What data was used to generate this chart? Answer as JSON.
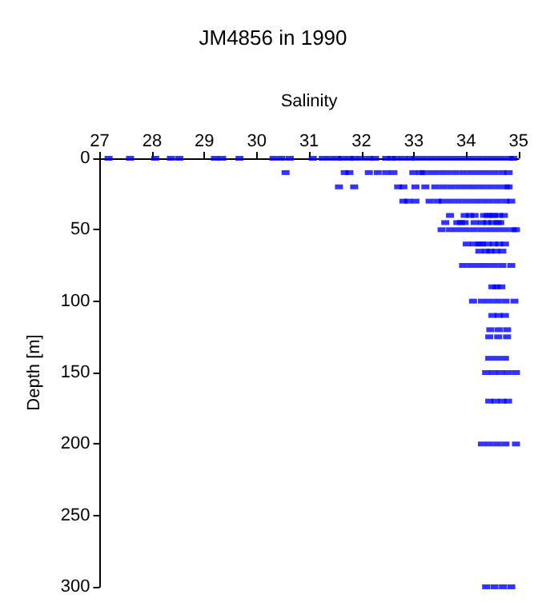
{
  "chart_data": {
    "type": "scatter",
    "title": "JM4856 in 1990",
    "xlabel": "Salinity",
    "ylabel": "Depth [m]",
    "xlim": [
      27,
      35
    ],
    "xticks": [
      27,
      28,
      29,
      30,
      31,
      32,
      33,
      34,
      35
    ],
    "ylim": [
      300,
      0
    ],
    "yticks": [
      0,
      50,
      100,
      150,
      200,
      250,
      300
    ],
    "grid": false,
    "marker": "square",
    "series": [
      {
        "color": "#0000ff",
        "x": [
          27.17,
          27.58,
          28.06,
          28.36,
          28.52,
          29.2,
          29.34,
          29.67,
          30.32,
          30.47,
          30.63,
          31.07,
          31.26,
          31.4,
          31.54,
          31.63,
          31.77,
          31.86,
          32.0,
          32.15,
          32.26,
          32.47,
          32.57,
          32.66,
          32.8,
          32.94,
          33.03,
          33.18,
          33.33,
          33.48,
          33.63,
          33.78,
          33.93,
          34.08,
          34.23,
          34.38,
          34.53,
          34.68,
          34.83,
          34.9,
          30.55,
          31.68,
          31.77,
          32.14,
          32.31,
          32.47,
          32.61,
          32.99,
          33.13,
          33.19,
          33.34,
          33.49,
          33.64,
          33.79,
          33.94,
          34.09,
          34.24,
          34.39,
          34.54,
          34.69,
          34.81,
          31.57,
          31.86,
          32.7,
          32.8,
          33.03,
          33.22,
          33.41,
          33.56,
          33.71,
          33.86,
          34.01,
          34.16,
          34.31,
          34.46,
          34.61,
          34.76,
          34.81,
          32.8,
          32.89,
          33.03,
          33.3,
          33.45,
          33.55,
          33.7,
          33.85,
          34.0,
          34.15,
          34.3,
          34.45,
          34.6,
          34.75,
          34.86,
          33.69,
          33.97,
          34.07,
          34.16,
          34.34,
          34.41,
          34.48,
          34.53,
          34.63,
          34.72,
          33.6,
          33.83,
          33.9,
          33.97,
          34.16,
          34.3,
          34.4,
          34.5,
          34.6,
          34.65,
          33.53,
          33.69,
          33.84,
          33.99,
          34.14,
          34.29,
          34.44,
          34.59,
          34.74,
          34.89,
          34.95,
          34.01,
          34.15,
          34.25,
          34.3,
          34.41,
          34.53,
          34.63,
          34.74,
          34.25,
          34.38,
          34.46,
          34.57,
          34.69,
          33.94,
          34.09,
          34.24,
          34.39,
          34.54,
          34.69,
          34.86,
          34.5,
          34.58,
          34.67,
          34.13,
          34.3,
          34.45,
          34.6,
          34.75,
          34.92,
          34.5,
          34.62,
          34.74,
          34.46,
          34.62,
          34.78,
          34.44,
          34.61,
          34.78,
          34.44,
          34.59,
          34.74,
          34.38,
          34.52,
          34.66,
          34.8,
          34.95,
          34.44,
          34.56,
          34.69,
          34.8,
          34.3,
          34.45,
          34.6,
          34.75,
          34.95,
          34.38,
          34.54,
          34.7,
          34.86
        ],
        "values": [
          0,
          0,
          0,
          0,
          0,
          0,
          0,
          0,
          0,
          0,
          0,
          0,
          0,
          0,
          0,
          0,
          0,
          0,
          0,
          0,
          0,
          0,
          0,
          0,
          0,
          0,
          0,
          0,
          0,
          0,
          0,
          0,
          0,
          0,
          0,
          0,
          0,
          0,
          0,
          0,
          10,
          10,
          10,
          10,
          10,
          10,
          10,
          10,
          10,
          10,
          10,
          10,
          10,
          10,
          10,
          10,
          10,
          10,
          10,
          10,
          10,
          20,
          20,
          20,
          20,
          20,
          20,
          20,
          20,
          20,
          20,
          20,
          20,
          20,
          20,
          20,
          20,
          20,
          30,
          30,
          30,
          30,
          30,
          30,
          30,
          30,
          30,
          30,
          30,
          30,
          30,
          30,
          30,
          40,
          40,
          40,
          40,
          40,
          40,
          40,
          40,
          40,
          40,
          45,
          45,
          45,
          45,
          45,
          45,
          45,
          45,
          45,
          45,
          50,
          50,
          50,
          50,
          50,
          50,
          50,
          50,
          50,
          50,
          50,
          60,
          60,
          60,
          60,
          60,
          60,
          60,
          60,
          65,
          65,
          65,
          65,
          65,
          75,
          75,
          75,
          75,
          75,
          75,
          75,
          90,
          90,
          90,
          100,
          100,
          100,
          100,
          100,
          100,
          110,
          110,
          110,
          120,
          120,
          120,
          125,
          125,
          125,
          140,
          140,
          140,
          150,
          150,
          150,
          150,
          150,
          170,
          170,
          170,
          170,
          200,
          200,
          200,
          200,
          200,
          300,
          300,
          300,
          300
        ]
      }
    ]
  }
}
